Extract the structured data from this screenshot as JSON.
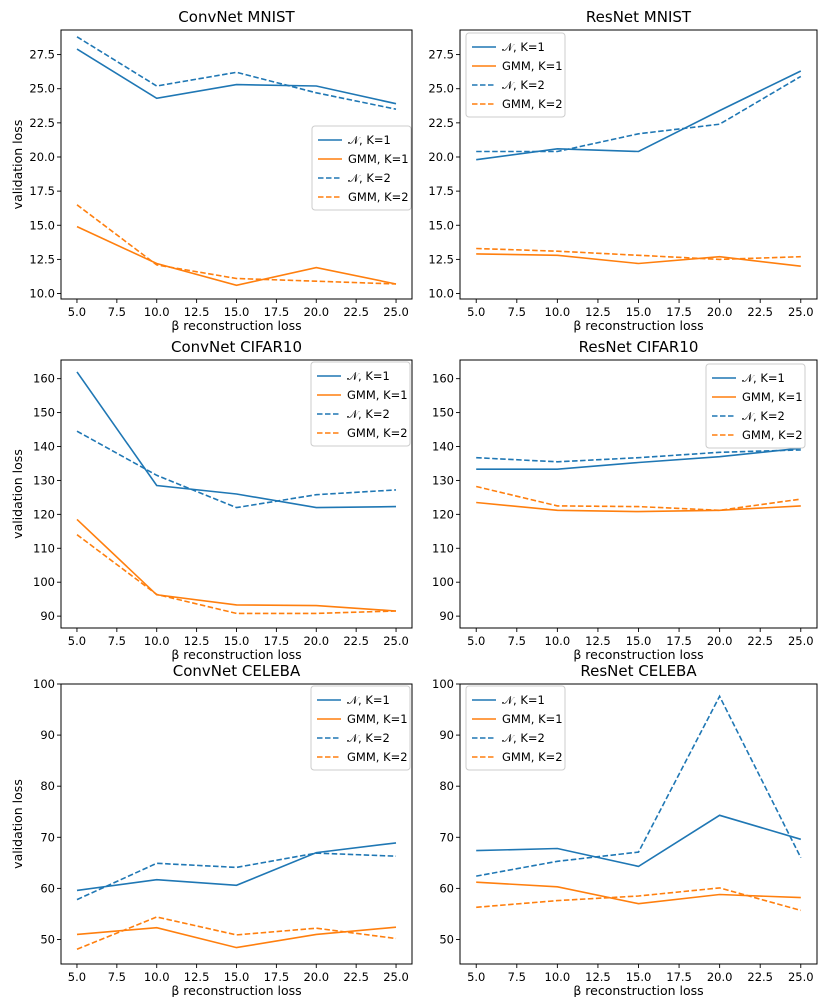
{
  "figure": {
    "series_style": {
      "N_K1": {
        "color": "#1f77b4",
        "dash": "solid"
      },
      "GMM_K1": {
        "color": "#ff7f0e",
        "dash": "solid"
      },
      "N_K2": {
        "color": "#1f77b4",
        "dash": "dashed"
      },
      "GMM_K2": {
        "color": "#ff7f0e",
        "dash": "dashed"
      }
    }
  },
  "chart_data": [
    {
      "type": "line",
      "title": "ConvNet MNIST",
      "xlabel": "β reconstruction loss",
      "ylabel": "validation loss",
      "x": [
        5,
        10,
        15,
        20,
        25
      ],
      "xlim": [
        4,
        26
      ],
      "ylim": [
        9.6,
        29.3
      ],
      "xticks": [
        "5.0",
        "7.5",
        "10.0",
        "12.5",
        "15.0",
        "17.5",
        "20.0",
        "22.5",
        "25.0"
      ],
      "yticks": [
        "10.0",
        "12.5",
        "15.0",
        "17.5",
        "20.0",
        "22.5",
        "25.0",
        "27.5"
      ],
      "legend_position": "center-right",
      "series": [
        {
          "key": "N_K1",
          "name": "𝒩, K=1",
          "values": [
            27.9,
            24.3,
            25.3,
            25.2,
            23.9
          ]
        },
        {
          "key": "GMM_K1",
          "name": "GMM, K=1",
          "values": [
            14.9,
            12.2,
            10.6,
            11.9,
            10.7
          ]
        },
        {
          "key": "N_K2",
          "name": "𝒩, K=2",
          "values": [
            28.8,
            25.2,
            26.2,
            24.7,
            23.5
          ]
        },
        {
          "key": "GMM_K2",
          "name": "GMM, K=2",
          "values": [
            16.5,
            12.1,
            11.1,
            10.9,
            10.7
          ]
        }
      ]
    },
    {
      "type": "line",
      "title": "ResNet MNIST",
      "xlabel": "β reconstruction loss",
      "ylabel": "",
      "x": [
        5,
        10,
        15,
        20,
        25
      ],
      "xlim": [
        4,
        26
      ],
      "ylim": [
        9.6,
        29.3
      ],
      "xticks": [
        "5.0",
        "7.5",
        "10.0",
        "12.5",
        "15.0",
        "17.5",
        "20.0",
        "22.5",
        "25.0"
      ],
      "yticks": [
        "10.0",
        "12.5",
        "15.0",
        "17.5",
        "20.0",
        "22.5",
        "25.0",
        "27.5"
      ],
      "legend_position": "top-left",
      "series": [
        {
          "key": "N_K1",
          "name": "𝒩, K=1",
          "values": [
            19.8,
            20.6,
            20.4,
            23.4,
            26.3
          ]
        },
        {
          "key": "GMM_K1",
          "name": "GMM, K=1",
          "values": [
            12.9,
            12.8,
            12.2,
            12.7,
            12.0
          ]
        },
        {
          "key": "N_K2",
          "name": "𝒩, K=2",
          "values": [
            20.4,
            20.4,
            21.7,
            22.4,
            25.9
          ]
        },
        {
          "key": "GMM_K2",
          "name": "GMM, K=2",
          "values": [
            13.3,
            13.1,
            12.8,
            12.5,
            12.7
          ]
        }
      ]
    },
    {
      "type": "line",
      "title": "ConvNet CIFAR10",
      "xlabel": "β reconstruction loss",
      "ylabel": "validation loss",
      "x": [
        5,
        10,
        15,
        20,
        25
      ],
      "xlim": [
        4,
        26
      ],
      "ylim": [
        86.5,
        165.5
      ],
      "xticks": [
        "5.0",
        "7.5",
        "10.0",
        "12.5",
        "15.0",
        "17.5",
        "20.0",
        "22.5",
        "25.0"
      ],
      "yticks": [
        "90",
        "100",
        "110",
        "120",
        "130",
        "140",
        "150",
        "160"
      ],
      "legend_position": "top-right",
      "series": [
        {
          "key": "N_K1",
          "name": "𝒩, K=1",
          "values": [
            162.0,
            128.5,
            126.0,
            122.0,
            122.3
          ]
        },
        {
          "key": "GMM_K1",
          "name": "GMM, K=1",
          "values": [
            118.5,
            96.3,
            93.3,
            93.1,
            91.5
          ]
        },
        {
          "key": "N_K2",
          "name": "𝒩, K=2",
          "values": [
            144.5,
            131.5,
            122.0,
            125.8,
            127.2
          ]
        },
        {
          "key": "GMM_K2",
          "name": "GMM, K=2",
          "values": [
            114.0,
            96.4,
            90.8,
            90.8,
            91.5
          ]
        }
      ]
    },
    {
      "type": "line",
      "title": "ResNet CIFAR10",
      "xlabel": "β reconstruction loss",
      "ylabel": "",
      "x": [
        5,
        10,
        15,
        20,
        25
      ],
      "xlim": [
        4,
        26
      ],
      "ylim": [
        86.5,
        165.5
      ],
      "xticks": [
        "5.0",
        "7.5",
        "10.0",
        "12.5",
        "15.0",
        "17.5",
        "20.0",
        "22.5",
        "25.0"
      ],
      "yticks": [
        "90",
        "100",
        "110",
        "120",
        "130",
        "140",
        "150",
        "160"
      ],
      "legend_position": "top-right",
      "series": [
        {
          "key": "N_K1",
          "name": "𝒩, K=1",
          "values": [
            133.3,
            133.3,
            135.3,
            137.0,
            139.5
          ]
        },
        {
          "key": "GMM_K1",
          "name": "GMM, K=1",
          "values": [
            123.5,
            121.2,
            120.8,
            121.2,
            122.5
          ]
        },
        {
          "key": "N_K2",
          "name": "𝒩, K=2",
          "values": [
            136.7,
            135.5,
            136.7,
            138.3,
            139.0
          ]
        },
        {
          "key": "GMM_K2",
          "name": "GMM, K=2",
          "values": [
            128.2,
            122.5,
            122.3,
            121.2,
            124.5
          ]
        }
      ]
    },
    {
      "type": "line",
      "title": "ConvNet CELEBA",
      "xlabel": "β reconstruction loss",
      "ylabel": "validation loss",
      "x": [
        5,
        10,
        15,
        20,
        25
      ],
      "xlim": [
        4,
        26
      ],
      "ylim": [
        45.2,
        100.0
      ],
      "xticks": [
        "5.0",
        "7.5",
        "10.0",
        "12.5",
        "15.0",
        "17.5",
        "20.0",
        "22.5",
        "25.0"
      ],
      "yticks": [
        "50",
        "60",
        "70",
        "80",
        "90",
        "100"
      ],
      "legend_position": "top-right",
      "series": [
        {
          "key": "N_K1",
          "name": "𝒩, K=1",
          "values": [
            59.6,
            61.7,
            60.6,
            67.0,
            68.9
          ]
        },
        {
          "key": "GMM_K1",
          "name": "GMM, K=1",
          "values": [
            51.0,
            52.3,
            48.4,
            51.0,
            52.4
          ]
        },
        {
          "key": "N_K2",
          "name": "𝒩, K=2",
          "values": [
            57.8,
            64.9,
            64.1,
            66.9,
            66.3
          ]
        },
        {
          "key": "GMM_K2",
          "name": "GMM, K=2",
          "values": [
            48.1,
            54.4,
            50.9,
            52.2,
            50.2
          ]
        }
      ]
    },
    {
      "type": "line",
      "title": "ResNet CELEBA",
      "xlabel": "β reconstruction loss",
      "ylabel": "",
      "x": [
        5,
        10,
        15,
        20,
        25
      ],
      "xlim": [
        4,
        26
      ],
      "ylim": [
        45.2,
        100.0
      ],
      "xticks": [
        "5.0",
        "7.5",
        "10.0",
        "12.5",
        "15.0",
        "17.5",
        "20.0",
        "22.5",
        "25.0"
      ],
      "yticks": [
        "50",
        "60",
        "70",
        "80",
        "90",
        "100"
      ],
      "legend_position": "top-left",
      "series": [
        {
          "key": "N_K1",
          "name": "𝒩, K=1",
          "values": [
            67.4,
            67.8,
            64.3,
            74.3,
            69.6
          ]
        },
        {
          "key": "GMM_K1",
          "name": "GMM, K=1",
          "values": [
            61.2,
            60.3,
            57.0,
            58.8,
            58.2
          ]
        },
        {
          "key": "N_K2",
          "name": "𝒩, K=2",
          "values": [
            62.4,
            65.3,
            67.1,
            97.6,
            66.0
          ]
        },
        {
          "key": "GMM_K2",
          "name": "GMM, K=2",
          "values": [
            56.3,
            57.6,
            58.5,
            60.1,
            55.7
          ]
        }
      ]
    }
  ]
}
